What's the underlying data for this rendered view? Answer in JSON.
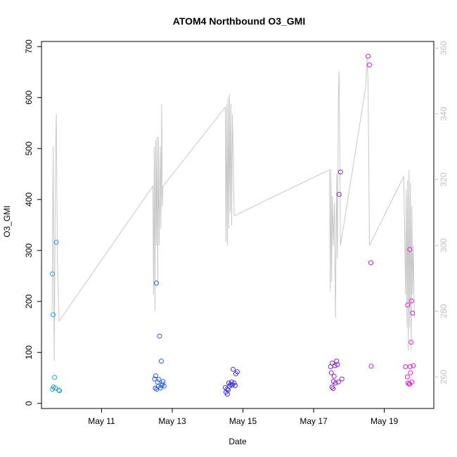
{
  "chart_data": {
    "type": "scatter",
    "title": "ATOM4 Northbound O3_GMI",
    "xlabel": "Date",
    "ylabel": "O3_GMI",
    "x_tick_labels": [
      "May 11",
      "May 13",
      "May 15",
      "May 17",
      "May 19"
    ],
    "x_ticks": [
      11,
      13,
      15,
      17,
      19
    ],
    "y_ticks": [
      0,
      100,
      200,
      300,
      400,
      500,
      600,
      700
    ],
    "y2_ticks": [
      260,
      280,
      300,
      320,
      340,
      360
    ],
    "xlim": [
      9.3,
      20.4
    ],
    "ylim": [
      -10,
      710
    ],
    "y2lim": [
      250.4,
      362.0
    ],
    "colors": {
      "line": "#c8c8c8",
      "right_axis": "#c0c0c0"
    },
    "scatter": {
      "name": "O3_GMI",
      "points": [
        {
          "x": 9.61,
          "y": 254,
          "c": "#1fa3e6"
        },
        {
          "x": 9.63,
          "y": 174,
          "c": "#1fa3e6"
        },
        {
          "x": 9.67,
          "y": 51,
          "c": "#1fa3e6"
        },
        {
          "x": 9.61,
          "y": 28,
          "c": "#1fa3e6"
        },
        {
          "x": 9.64,
          "y": 32,
          "c": "#1fa3e6"
        },
        {
          "x": 9.69,
          "y": 30,
          "c": "#1fa3e6"
        },
        {
          "x": 9.72,
          "y": 316,
          "c": "#1fa3e6"
        },
        {
          "x": 9.79,
          "y": 26,
          "c": "#1fa3e6"
        },
        {
          "x": 9.81,
          "y": 25,
          "c": "#1fa3e6"
        },
        {
          "x": 12.55,
          "y": 236,
          "c": "#2f5ef0"
        },
        {
          "x": 12.64,
          "y": 132,
          "c": "#2f5ef0"
        },
        {
          "x": 12.69,
          "y": 83,
          "c": "#2f5ef0"
        },
        {
          "x": 12.5,
          "y": 48,
          "c": "#2f5ef0"
        },
        {
          "x": 12.53,
          "y": 54,
          "c": "#2f5ef0"
        },
        {
          "x": 12.58,
          "y": 42,
          "c": "#2f5ef0"
        },
        {
          "x": 12.62,
          "y": 47,
          "c": "#2f5ef0"
        },
        {
          "x": 12.52,
          "y": 30,
          "c": "#2f5ef0"
        },
        {
          "x": 12.56,
          "y": 28,
          "c": "#2f5ef0"
        },
        {
          "x": 12.6,
          "y": 33,
          "c": "#2f5ef0"
        },
        {
          "x": 12.66,
          "y": 30,
          "c": "#2f5ef0"
        },
        {
          "x": 12.7,
          "y": 35,
          "c": "#2f5ef0"
        },
        {
          "x": 12.74,
          "y": 43,
          "c": "#2f5ef0"
        },
        {
          "x": 12.77,
          "y": 34,
          "c": "#2f5ef0"
        },
        {
          "x": 12.72,
          "y": 38,
          "c": "#2f5ef0"
        },
        {
          "x": 14.5,
          "y": 31,
          "c": "#3a2ee6"
        },
        {
          "x": 14.52,
          "y": 22,
          "c": "#3a2ee6"
        },
        {
          "x": 14.56,
          "y": 18,
          "c": "#3a2ee6"
        },
        {
          "x": 14.58,
          "y": 26,
          "c": "#3a2ee6"
        },
        {
          "x": 14.6,
          "y": 40,
          "c": "#3a2ee6"
        },
        {
          "x": 14.62,
          "y": 34,
          "c": "#3a2ee6"
        },
        {
          "x": 14.65,
          "y": 37,
          "c": "#3a2ee6"
        },
        {
          "x": 14.68,
          "y": 42,
          "c": "#3a2ee6"
        },
        {
          "x": 14.7,
          "y": 36,
          "c": "#3a2ee6"
        },
        {
          "x": 14.72,
          "y": 67,
          "c": "#3a2ee6"
        },
        {
          "x": 14.75,
          "y": 40,
          "c": "#3a2ee6"
        },
        {
          "x": 14.78,
          "y": 35,
          "c": "#3a2ee6"
        },
        {
          "x": 14.8,
          "y": 58,
          "c": "#3a2ee6"
        },
        {
          "x": 14.84,
          "y": 62,
          "c": "#3a2ee6"
        },
        {
          "x": 14.55,
          "y": 28,
          "c": "#3a2ee6"
        },
        {
          "x": 17.48,
          "y": 72,
          "c": "#8a1fe6"
        },
        {
          "x": 17.5,
          "y": 60,
          "c": "#8a1fe6"
        },
        {
          "x": 17.52,
          "y": 32,
          "c": "#8a1fe6"
        },
        {
          "x": 17.55,
          "y": 29,
          "c": "#8a1fe6"
        },
        {
          "x": 17.53,
          "y": 79,
          "c": "#8a1fe6"
        },
        {
          "x": 17.56,
          "y": 43,
          "c": "#8a1fe6"
        },
        {
          "x": 17.58,
          "y": 53,
          "c": "#8a1fe6"
        },
        {
          "x": 17.6,
          "y": 74,
          "c": "#8a1fe6"
        },
        {
          "x": 17.62,
          "y": 40,
          "c": "#8a1fe6"
        },
        {
          "x": 17.65,
          "y": 83,
          "c": "#8a1fe6"
        },
        {
          "x": 17.67,
          "y": 76,
          "c": "#8a1fe6"
        },
        {
          "x": 17.7,
          "y": 42,
          "c": "#8a1fe6"
        },
        {
          "x": 17.72,
          "y": 410,
          "c": "#8a1fe6"
        },
        {
          "x": 17.76,
          "y": 454,
          "c": "#8a1fe6"
        },
        {
          "x": 17.8,
          "y": 48,
          "c": "#8a1fe6"
        },
        {
          "x": 18.54,
          "y": 681,
          "c": "#c61fe0"
        },
        {
          "x": 18.58,
          "y": 664,
          "c": "#c61fe0"
        },
        {
          "x": 18.62,
          "y": 276,
          "c": "#c61fe0"
        },
        {
          "x": 18.63,
          "y": 73,
          "c": "#c61fe0"
        },
        {
          "x": 19.6,
          "y": 72,
          "c": "#e81fd6"
        },
        {
          "x": 19.66,
          "y": 193,
          "c": "#e81fd6"
        },
        {
          "x": 19.65,
          "y": 52,
          "c": "#e81fd6"
        },
        {
          "x": 19.67,
          "y": 40,
          "c": "#e81fd6"
        },
        {
          "x": 19.7,
          "y": 38,
          "c": "#e81fd6"
        },
        {
          "x": 19.72,
          "y": 302,
          "c": "#e81fd6"
        },
        {
          "x": 19.73,
          "y": 72,
          "c": "#e81fd6"
        },
        {
          "x": 19.74,
          "y": 60,
          "c": "#e81fd6"
        },
        {
          "x": 19.76,
          "y": 120,
          "c": "#e81fd6"
        },
        {
          "x": 19.77,
          "y": 201,
          "c": "#e81fd6"
        },
        {
          "x": 19.78,
          "y": 42,
          "c": "#e81fd6"
        },
        {
          "x": 19.8,
          "y": 177,
          "c": "#e81fd6"
        },
        {
          "x": 19.82,
          "y": 74,
          "c": "#e81fd6"
        },
        {
          "x": 19.72,
          "y": 38,
          "c": "#e81fd6"
        }
      ]
    },
    "line": {
      "points": [
        [
          9.6,
          280
        ],
        [
          9.63,
          330
        ],
        [
          9.66,
          265
        ],
        [
          9.7,
          330
        ],
        [
          9.72,
          340
        ],
        [
          9.75,
          295
        ],
        [
          9.8,
          277
        ],
        [
          12.45,
          318
        ],
        [
          12.47,
          285
        ],
        [
          12.49,
          330
        ],
        [
          12.51,
          280
        ],
        [
          12.53,
          332
        ],
        [
          12.55,
          300
        ],
        [
          12.57,
          333
        ],
        [
          12.59,
          288
        ],
        [
          12.61,
          333
        ],
        [
          12.63,
          300
        ],
        [
          12.66,
          330
        ],
        [
          12.68,
          305
        ],
        [
          12.7,
          343
        ],
        [
          12.72,
          312
        ],
        [
          12.74,
          318
        ],
        [
          14.5,
          342
        ],
        [
          14.52,
          301
        ],
        [
          14.54,
          343
        ],
        [
          14.56,
          300
        ],
        [
          14.58,
          345
        ],
        [
          14.6,
          305
        ],
        [
          14.62,
          346
        ],
        [
          14.64,
          310
        ],
        [
          14.66,
          343
        ],
        [
          14.68,
          306
        ],
        [
          14.7,
          340
        ],
        [
          14.72,
          330
        ],
        [
          14.75,
          309
        ],
        [
          17.45,
          323
        ],
        [
          17.47,
          286
        ],
        [
          17.49,
          323
        ],
        [
          17.51,
          289
        ],
        [
          17.53,
          315
        ],
        [
          17.56,
          300
        ],
        [
          17.59,
          313
        ],
        [
          17.62,
          278
        ],
        [
          17.65,
          322
        ],
        [
          17.67,
          296
        ],
        [
          17.7,
          345
        ],
        [
          17.72,
          353
        ],
        [
          17.76,
          300
        ],
        [
          18.47,
          348
        ],
        [
          18.51,
          357
        ],
        [
          18.54,
          350
        ],
        [
          18.58,
          300
        ],
        [
          19.55,
          321
        ],
        [
          19.6,
          285
        ],
        [
          19.62,
          317
        ],
        [
          19.64,
          275
        ],
        [
          19.66,
          320
        ],
        [
          19.68,
          268
        ],
        [
          19.7,
          323
        ],
        [
          19.72,
          275
        ],
        [
          19.74,
          319
        ],
        [
          19.76,
          268
        ],
        [
          19.78,
          312
        ],
        [
          19.8,
          285
        ],
        [
          19.82,
          300
        ],
        [
          19.85,
          278
        ]
      ]
    }
  }
}
